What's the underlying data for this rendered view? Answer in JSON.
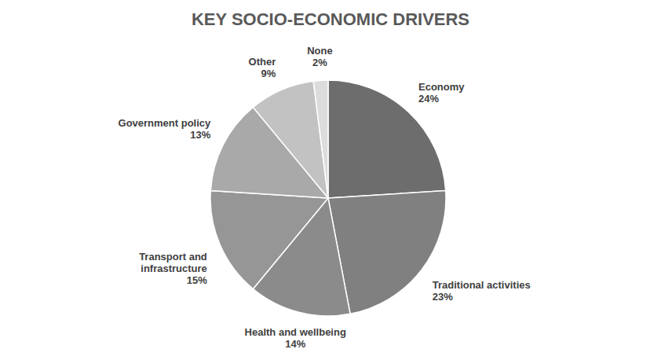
{
  "chart_data": {
    "type": "pie",
    "title": "KEY SOCIO-ECONOMIC DRIVERS",
    "categories": [
      "Economy",
      "Traditional activities",
      "Health and wellbeing",
      "Transport and infrastructure",
      "Government policy",
      "Other",
      "None"
    ],
    "values": [
      24,
      23,
      14,
      15,
      13,
      9,
      2
    ],
    "value_labels": [
      "24%",
      "23%",
      "14%",
      "15%",
      "13%",
      "9%",
      "2%"
    ],
    "colors": [
      "#6d6d6d",
      "#808080",
      "#8b8b8b",
      "#969696",
      "#a9a9a9",
      "#c2c2c2",
      "#dcdcdc"
    ],
    "data_labels": true
  }
}
